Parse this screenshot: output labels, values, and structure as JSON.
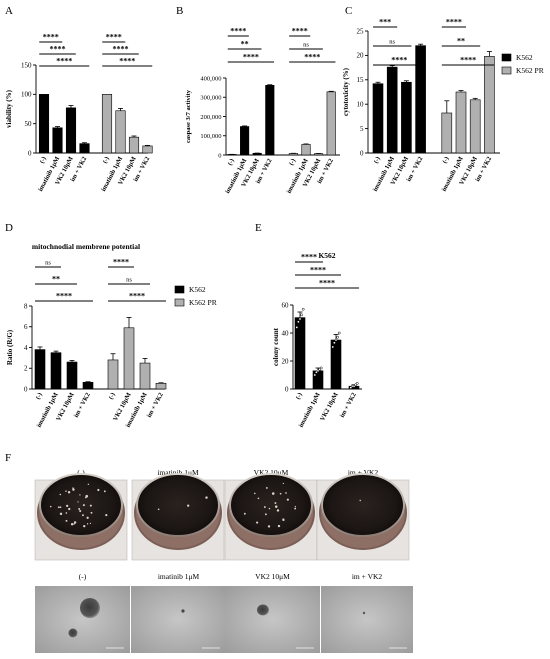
{
  "stars": "****",
  "chart_data": [
    {
      "panel": "A",
      "type": "bar",
      "ylabel": "viability (%)",
      "ylim": [
        0,
        150
      ],
      "yticks": [
        0,
        50,
        100,
        150
      ],
      "categories": [
        "(-)",
        "imatinib 1μM",
        "VK2 10μM",
        "im + VK2",
        "(-)",
        "imatinib 1μM",
        "VK2 10μM",
        "im + VK2"
      ],
      "values": [
        100,
        43,
        77,
        16,
        100,
        72,
        27,
        12
      ],
      "errors": [
        0,
        2,
        4,
        1.5,
        0,
        4,
        2,
        1
      ],
      "colors": [
        "#000000",
        "#000000",
        "#000000",
        "#000000",
        "#b0b0b0",
        "#b0b0b0",
        "#b0b0b0",
        "#b0b0b0"
      ],
      "significance": [
        {
          "from": 0,
          "to": 1,
          "label": "****"
        },
        {
          "from": 0,
          "to": 2,
          "label": "****"
        },
        {
          "from": 0,
          "to": 3,
          "label": "****"
        },
        {
          "from": 4,
          "to": 5,
          "label": "****"
        },
        {
          "from": 4,
          "to": 6,
          "label": "****"
        },
        {
          "from": 4,
          "to": 7,
          "label": "****"
        }
      ]
    },
    {
      "panel": "B",
      "type": "bar",
      "ylabel": "caspase 3/7 activity",
      "ylim": [
        0,
        400000
      ],
      "yticks": [
        0,
        100000,
        200000,
        300000,
        400000
      ],
      "ytick_labels": [
        "0",
        "100,000",
        "200,000",
        "300,000",
        "400,000"
      ],
      "categories": [
        "(-)",
        "imatinib 1μM",
        "VK2 10μM",
        "im + VK2",
        "(-)",
        "imatinib 1μM",
        "VK2 10μM",
        "im + VK2"
      ],
      "values": [
        3000,
        148000,
        9000,
        362000,
        8000,
        55000,
        7000,
        328000
      ],
      "errors": [
        500,
        3000,
        1000,
        3000,
        1000,
        2500,
        800,
        3000
      ],
      "colors": [
        "#000000",
        "#000000",
        "#000000",
        "#000000",
        "#b0b0b0",
        "#b0b0b0",
        "#b0b0b0",
        "#b0b0b0"
      ],
      "significance": [
        {
          "from": 0,
          "to": 1,
          "label": "****"
        },
        {
          "from": 0,
          "to": 2,
          "label": "**"
        },
        {
          "from": 0,
          "to": 3,
          "label": "****"
        },
        {
          "from": 4,
          "to": 5,
          "label": "****"
        },
        {
          "from": 4,
          "to": 6,
          "label": "ns"
        },
        {
          "from": 4,
          "to": 7,
          "label": "****"
        }
      ]
    },
    {
      "panel": "C",
      "type": "bar",
      "ylabel": "cytotoxicity (%)",
      "ylim": [
        0,
        25
      ],
      "yticks": [
        0,
        5,
        10,
        15,
        20,
        25
      ],
      "categories": [
        "(-)",
        "imatinib 1μM",
        "VK2 10μM",
        "im + VK2",
        "(-)",
        "imatinib 1μM",
        "VK2 10μM",
        "im + VK2"
      ],
      "values": [
        14.2,
        17.6,
        14.5,
        22,
        8.2,
        12.5,
        10.9,
        19.8
      ],
      "errors": [
        0.3,
        0.3,
        0.3,
        0.3,
        2.5,
        0.3,
        0.3,
        1
      ],
      "colors": [
        "#000000",
        "#000000",
        "#000000",
        "#000000",
        "#b0b0b0",
        "#b0b0b0",
        "#b0b0b0",
        "#b0b0b0"
      ],
      "legend": [
        {
          "name": "K562",
          "color": "#000000"
        },
        {
          "name": "K562 PR",
          "color": "#b0b0b0"
        }
      ],
      "significance": [
        {
          "from": 0,
          "to": 1,
          "label": "***"
        },
        {
          "from": 0,
          "to": 2,
          "label": "ns"
        },
        {
          "from": 0,
          "to": 3,
          "label": "****"
        },
        {
          "from": 4,
          "to": 5,
          "label": "****"
        },
        {
          "from": 4,
          "to": 6,
          "label": "**"
        },
        {
          "from": 4,
          "to": 7,
          "label": "****"
        }
      ]
    },
    {
      "panel": "D",
      "type": "bar",
      "title": "mitochnodial membrene potential",
      "ylabel": "Ratio (R/G)",
      "ylim": [
        0,
        8
      ],
      "yticks": [
        0,
        2,
        4,
        6,
        8
      ],
      "categories": [
        "(-)",
        "imatinib 1μM",
        "VK2 10μM",
        "im + VK2",
        "(-)",
        "VK2 10μM",
        "imatinib 1μM",
        "im + VK2"
      ],
      "values": [
        3.8,
        3.5,
        2.6,
        0.65,
        2.8,
        5.9,
        2.5,
        0.55
      ],
      "errors": [
        0.25,
        0.15,
        0.15,
        0.05,
        0.6,
        1.0,
        0.45,
        0.05
      ],
      "colors": [
        "#000000",
        "#000000",
        "#000000",
        "#000000",
        "#b0b0b0",
        "#b0b0b0",
        "#b0b0b0",
        "#b0b0b0"
      ],
      "legend": [
        {
          "name": "K562",
          "color": "#000000"
        },
        {
          "name": "K562 PR",
          "color": "#b0b0b0"
        }
      ],
      "significance": [
        {
          "from": 0,
          "to": 1,
          "label": "ns"
        },
        {
          "from": 0,
          "to": 2,
          "label": "**"
        },
        {
          "from": 0,
          "to": 3,
          "label": "****"
        },
        {
          "from": 4,
          "to": 5,
          "label": "****"
        },
        {
          "from": 4,
          "to": 6,
          "label": "ns"
        },
        {
          "from": 4,
          "to": 7,
          "label": "****"
        }
      ]
    },
    {
      "panel": "E",
      "type": "bar",
      "title": "K562",
      "ylabel": "colony count",
      "ylim": [
        0,
        60
      ],
      "yticks": [
        0,
        20,
        40,
        60
      ],
      "categories": [
        "(-)",
        "imatinib 1μM",
        "VK2 10μM",
        "im + VK2"
      ],
      "values": [
        51,
        13,
        35,
        2
      ],
      "errors": [
        4,
        2,
        4,
        1
      ],
      "colors": [
        "#000000",
        "#000000",
        "#000000",
        "#000000"
      ],
      "points": [
        [
          44,
          48,
          50,
          53,
          57
        ],
        [
          10,
          12,
          13,
          14,
          15
        ],
        [
          30,
          33,
          35,
          37,
          40
        ],
        [
          1,
          2,
          2,
          3,
          4
        ]
      ],
      "significance": [
        {
          "from": 0,
          "to": 1,
          "label": "****"
        },
        {
          "from": 0,
          "to": 2,
          "label": "****"
        },
        {
          "from": 0,
          "to": 3,
          "label": "****"
        }
      ]
    }
  ],
  "panelF": {
    "wells": [
      "(-)",
      "imatinib 1μM",
      "VK2 10μM",
      "im + VK2"
    ],
    "micro": [
      "(-)",
      "imatinib 1μM",
      "VK2 10μM",
      "im + VK2"
    ]
  }
}
